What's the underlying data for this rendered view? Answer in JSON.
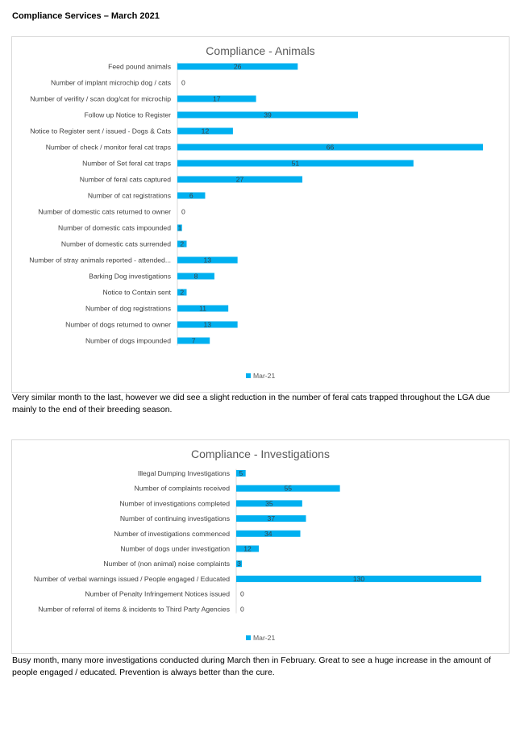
{
  "page": {
    "heading": "Compliance Services – March 2021",
    "comment_1": "Very similar month to the last, however we did see a slight reduction in the number of feral cats trapped throughout the LGA due mainly to the end of their breeding season.",
    "comment_2": "Busy month, many more investigations conducted during March then in February. Great to see a huge increase in the amount of people engaged / educated. Prevention is always better than the cure."
  },
  "colors": {
    "bar": "#00b0f0",
    "axis": "#d9d9d9",
    "title": "#595959",
    "text": "#404040"
  },
  "chart_data": [
    {
      "type": "bar",
      "orientation": "horizontal",
      "title": "Compliance - Animals",
      "legend": "bottom",
      "grid": false,
      "xlim": [
        0,
        66
      ],
      "categories": [
        "Feed pound animals",
        "Number of implant microchip dog / cats",
        "Number of verifity / scan dog/cat for microchip",
        "Follow up Notice to Register",
        "Notice to Register sent / issued - Dogs & Cats",
        "Number of check / monitor feral cat traps",
        "Number of Set feral cat traps",
        "Number of feral cats captured",
        "Number of cat registrations",
        "Number of domestic cats returned to owner",
        "Number of domestic cats impounded",
        "Number of domestic cats surrended",
        "Number of stray animals reported - attended...",
        "Barking Dog investigations",
        "Notice to Contain sent",
        "Number of dog registrations",
        "Number of dogs returned to owner",
        "Number of dogs impounded"
      ],
      "series": [
        {
          "name": "Mar-21",
          "values": [
            26,
            0,
            17,
            39,
            12,
            66,
            51,
            27,
            6,
            0,
            1,
            2,
            13,
            8,
            2,
            11,
            13,
            7
          ]
        }
      ]
    },
    {
      "type": "bar",
      "orientation": "horizontal",
      "title": "Compliance - Investigations",
      "legend": "bottom",
      "grid": false,
      "xlim": [
        0,
        130
      ],
      "categories": [
        "Illegal Dumping Investigations",
        "Number of complaints received",
        "Number of investigations completed",
        "Number of continuing investigations",
        "Number of investigations commenced",
        "Number of dogs under investigation",
        "Number of (non animal) noise complaints",
        "Number of verbal warnings issued  / People engaged / Educated",
        "Number of Penalty Infringement Notices issued",
        "Number of referral of items & incidents to Third Party Agencies"
      ],
      "series": [
        {
          "name": "Mar-21",
          "values": [
            5,
            55,
            35,
            37,
            34,
            12,
            3,
            130,
            0,
            0
          ]
        }
      ]
    }
  ]
}
